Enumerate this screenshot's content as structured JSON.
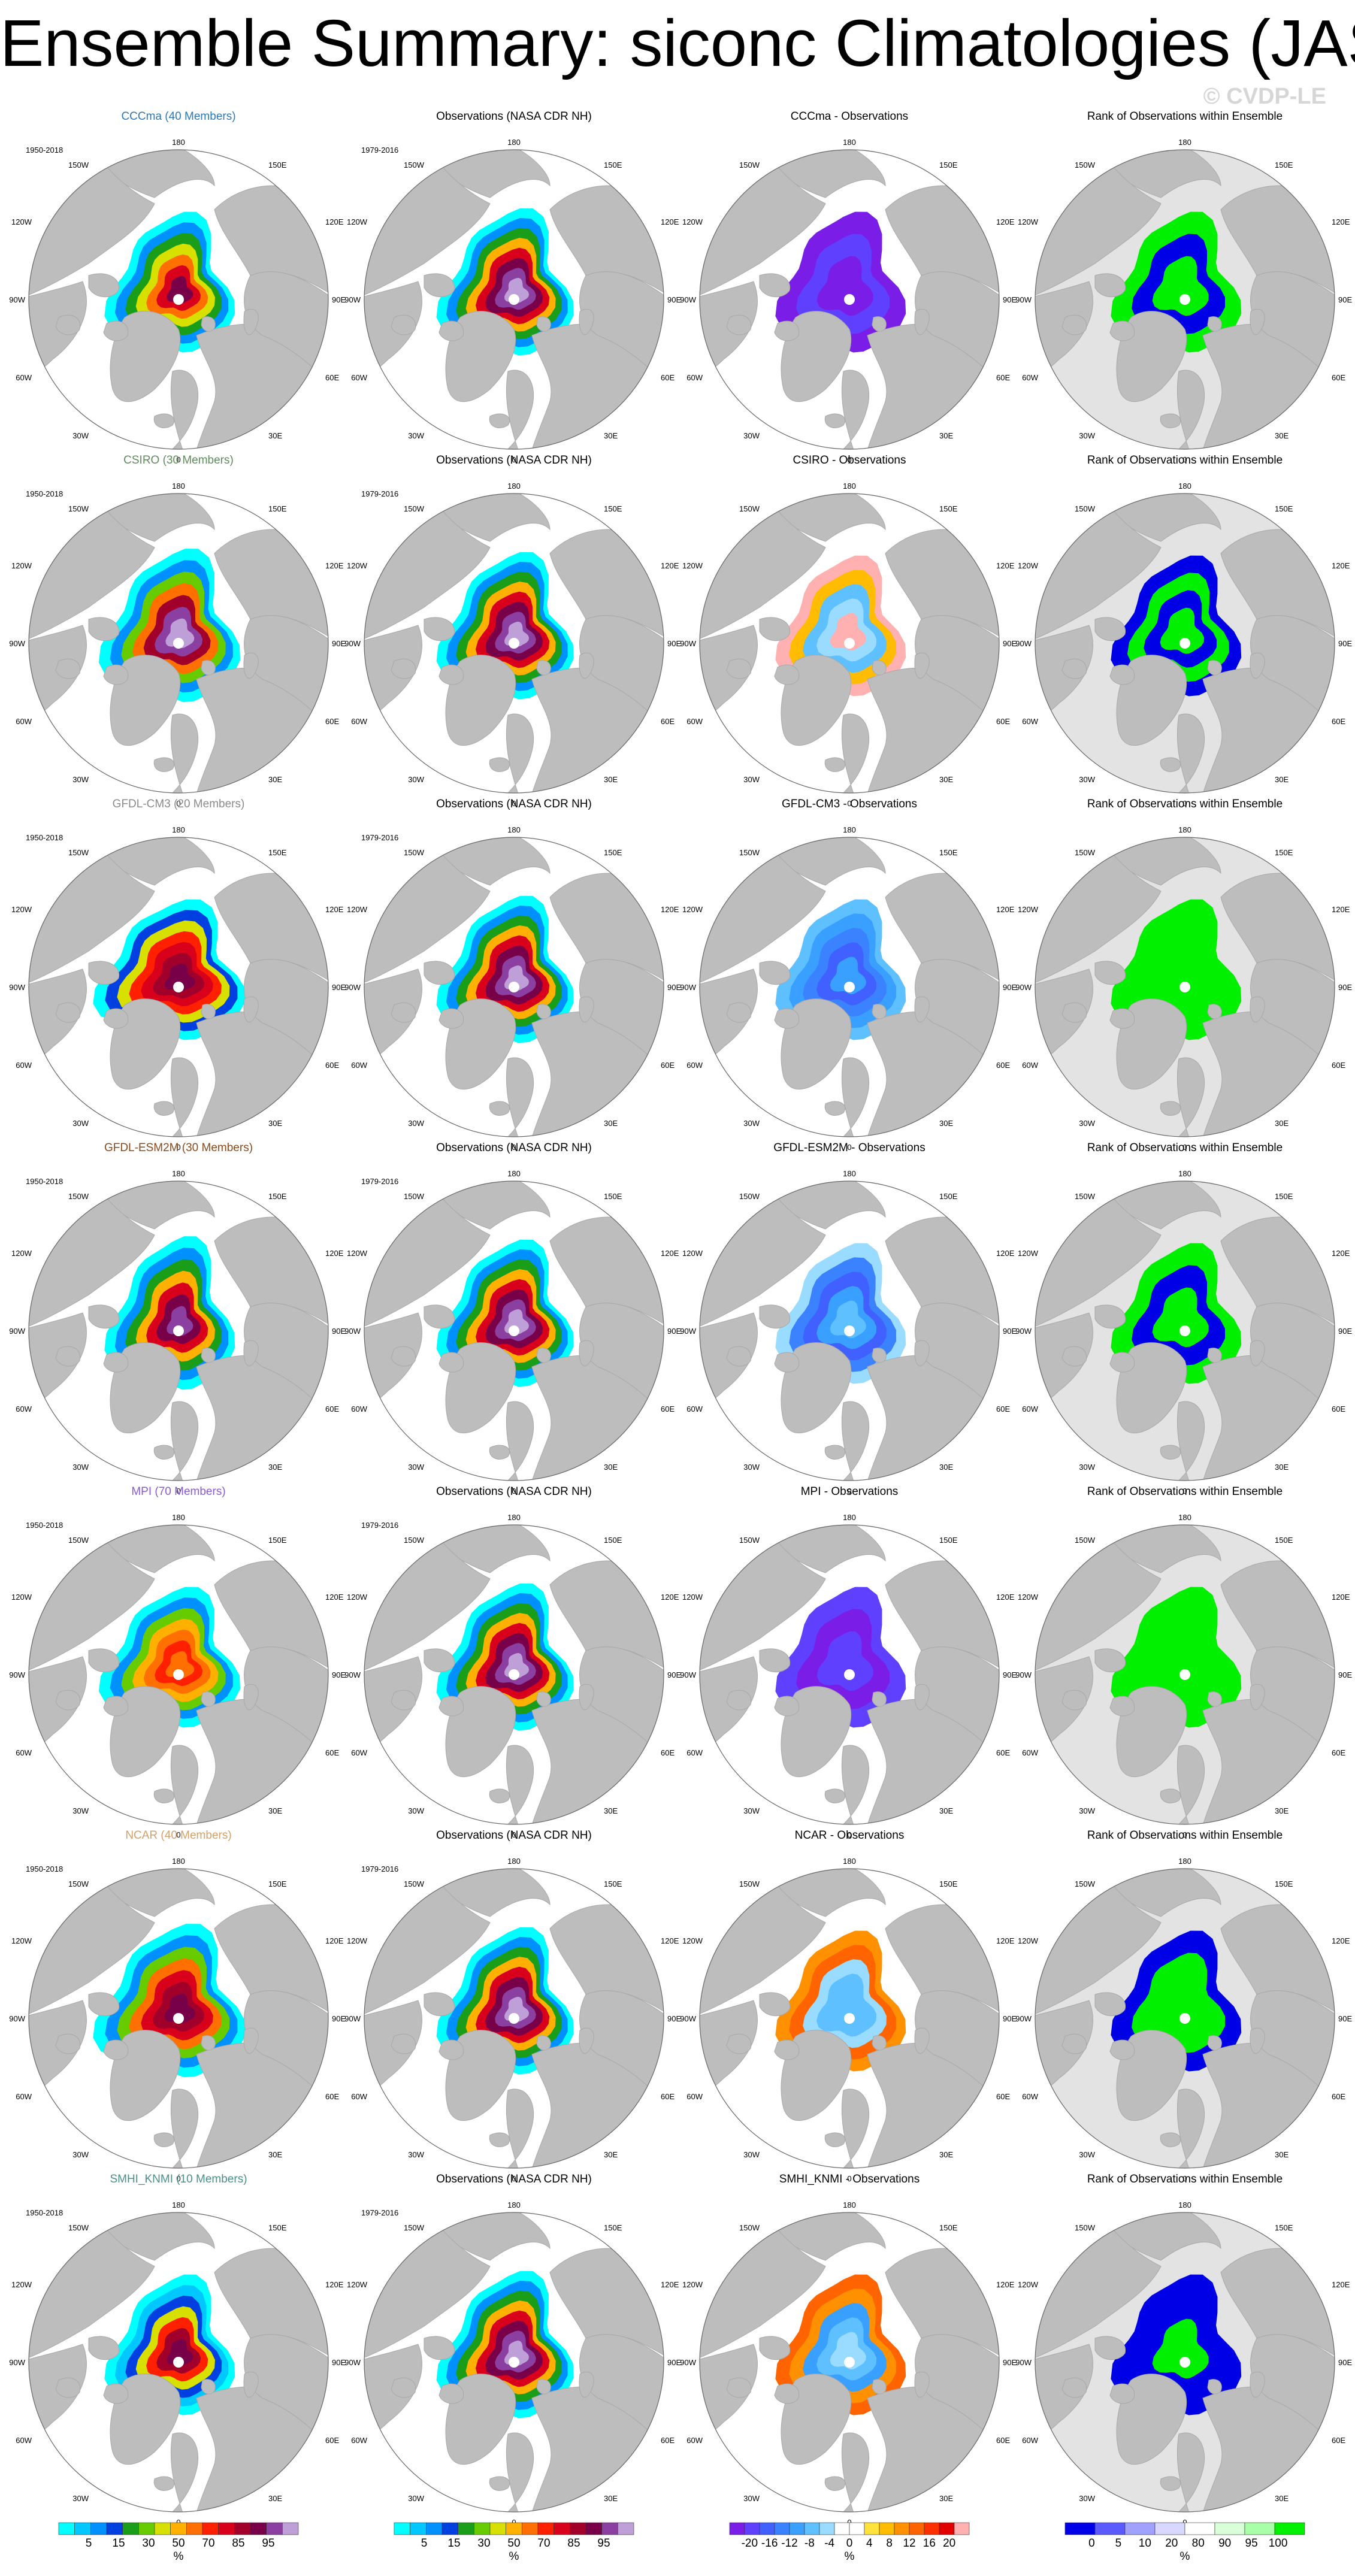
{
  "title": "Ensemble Summary: siconc Climatologies (JAS)",
  "watermark": "© CVDP-LE",
  "colors": {
    "land": "#bdbdbd",
    "land_edge": "#a8a8a8",
    "rank_background": "#e3e3e3",
    "ocean": "#ffffff"
  },
  "ensembles": [
    {
      "name": "CCCma (40 Members)",
      "short": "CCCma",
      "color": "#2a78b8",
      "years": "1950-2018"
    },
    {
      "name": "CSIRO (30 Members)",
      "short": "CSIRO",
      "color": "#5e8c5a",
      "years": "1950-2018"
    },
    {
      "name": "GFDL-CM3 (20 Members)",
      "short": "GFDL-CM3",
      "color": "#8a8a8a",
      "years": "1950-2018"
    },
    {
      "name": "GFDL-ESM2M (30 Members)",
      "short": "GFDL-ESM2M",
      "color": "#8b4a1c",
      "years": "1950-2018"
    },
    {
      "name": "MPI (70 Members)",
      "short": "MPI",
      "color": "#8a5ad0",
      "years": "1950-2018"
    },
    {
      "name": "NCAR (40 Members)",
      "short": "NCAR",
      "color": "#d4a06a",
      "years": "1950-2018"
    },
    {
      "name": "SMHI_KNMI (10 Members)",
      "short": "SMHI_KNMI",
      "color": "#4a8f8a",
      "years": "1950-2018"
    }
  ],
  "observations": {
    "title": "Observations (NASA CDR NH)",
    "years": "1979-2016"
  },
  "diff_suffix": " - Observations",
  "rank_title": "Rank of Observations within Ensemble",
  "lon_labels": {
    "top": "180",
    "bottom": "0",
    "left": [
      "150W",
      "120W",
      "90W",
      "60W",
      "30W"
    ],
    "right": [
      "150E",
      "120E",
      "90E",
      "60E",
      "30E"
    ]
  },
  "chart_data": [
    {
      "type": "heatmap",
      "description_key": "climatology",
      "units": "%",
      "tick_labels": [
        "5",
        "15",
        "30",
        "50",
        "70",
        "85",
        "95"
      ],
      "colors": [
        "#00ffff",
        "#00c8ff",
        "#0090ff",
        "#0040e0",
        "#1a9e1a",
        "#66cc00",
        "#d8e000",
        "#ffb000",
        "#ff7000",
        "#ff2000",
        "#d8001a",
        "#a0002a",
        "#780048",
        "#8b3fa0",
        "#bf9fd8"
      ]
    },
    {
      "type": "heatmap",
      "description_key": "difference",
      "units": "%",
      "tick_labels": [
        "-20",
        "-16",
        "-12",
        "-8",
        "-4",
        "0",
        "4",
        "8",
        "12",
        "16",
        "20"
      ],
      "colors": [
        "#7a1de6",
        "#6040ff",
        "#4060ff",
        "#3a82ff",
        "#3aa0ff",
        "#5ec0ff",
        "#9adcff",
        "#ffffff",
        "#ffffff",
        "#ffe23a",
        "#ffbc00",
        "#ff9000",
        "#ff6400",
        "#ff3000",
        "#e00000",
        "#ffb0b0"
      ]
    },
    {
      "type": "heatmap",
      "description_key": "rank",
      "units": "%",
      "tick_labels": [
        "0",
        "5",
        "10",
        "20",
        "80",
        "90",
        "95",
        "100"
      ],
      "colors": [
        "#0000e6",
        "#5a5aff",
        "#a0a0ff",
        "#d8d8ff",
        "#ffffff",
        "#d8ffd8",
        "#a8ffa8",
        "#00f000"
      ]
    }
  ]
}
